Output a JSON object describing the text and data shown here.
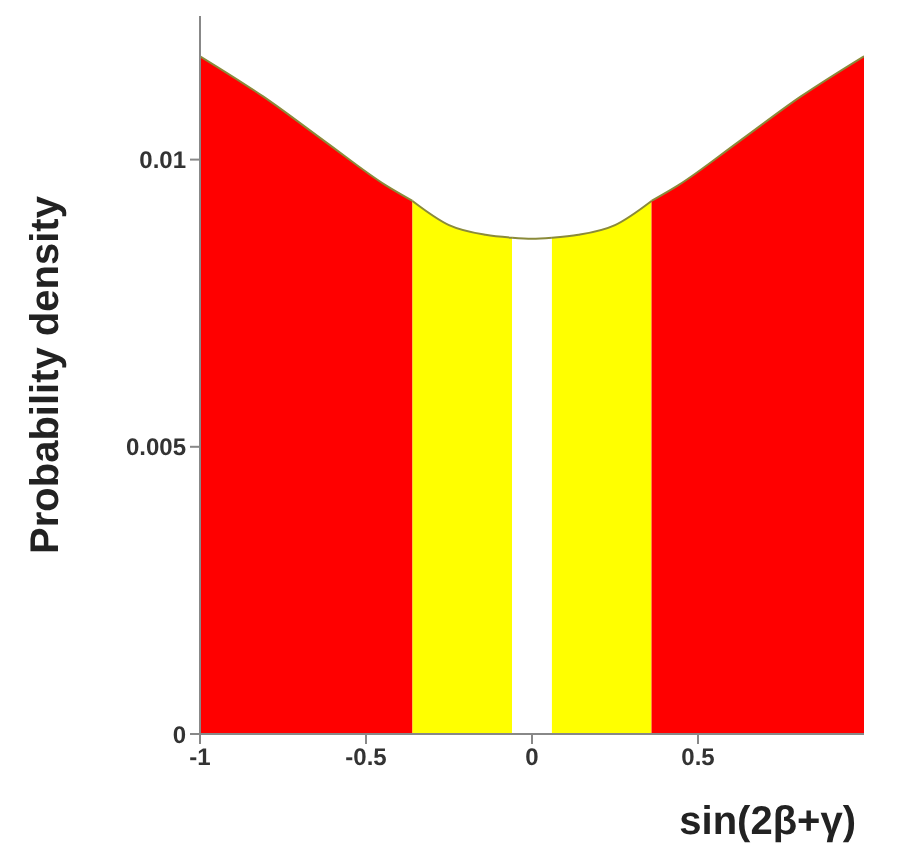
{
  "chart_data": {
    "type": "area",
    "xlabel": "sin(2β+γ)",
    "ylabel": "Probability density",
    "series": [
      {
        "color": "#ff0000",
        "x": [
          -1,
          -0.81,
          -0.62,
          -0.44,
          -0.36
        ],
        "values": [
          0.0118,
          0.0111,
          0.0103,
          0.00955,
          0.00928
        ]
      },
      {
        "color": "#ffff00",
        "x": [
          -0.36,
          -0.25,
          -0.14,
          -0.06
        ],
        "values": [
          0.00928,
          0.00886,
          0.00869,
          0.00864
        ]
      },
      {
        "color": "#ffffff",
        "x": [
          -0.06,
          0,
          0.06
        ],
        "values": [
          0.00864,
          0.00862,
          0.00864
        ]
      },
      {
        "color": "#ffff00",
        "x": [
          0.06,
          0.14,
          0.25,
          0.36
        ],
        "values": [
          0.00864,
          0.00869,
          0.00886,
          0.00928
        ]
      },
      {
        "color": "#ff0000",
        "x": [
          0.36,
          0.44,
          0.62,
          0.81,
          1
        ],
        "values": [
          0.00928,
          0.00955,
          0.0103,
          0.0111,
          0.0118
        ]
      }
    ],
    "xlim": [
      -1,
      1
    ],
    "xticks": [
      -1,
      -0.5,
      0,
      0.5
    ],
    "ylim": [
      0,
      0.0125
    ],
    "yticks": [
      0,
      0.005,
      0.01
    ]
  }
}
